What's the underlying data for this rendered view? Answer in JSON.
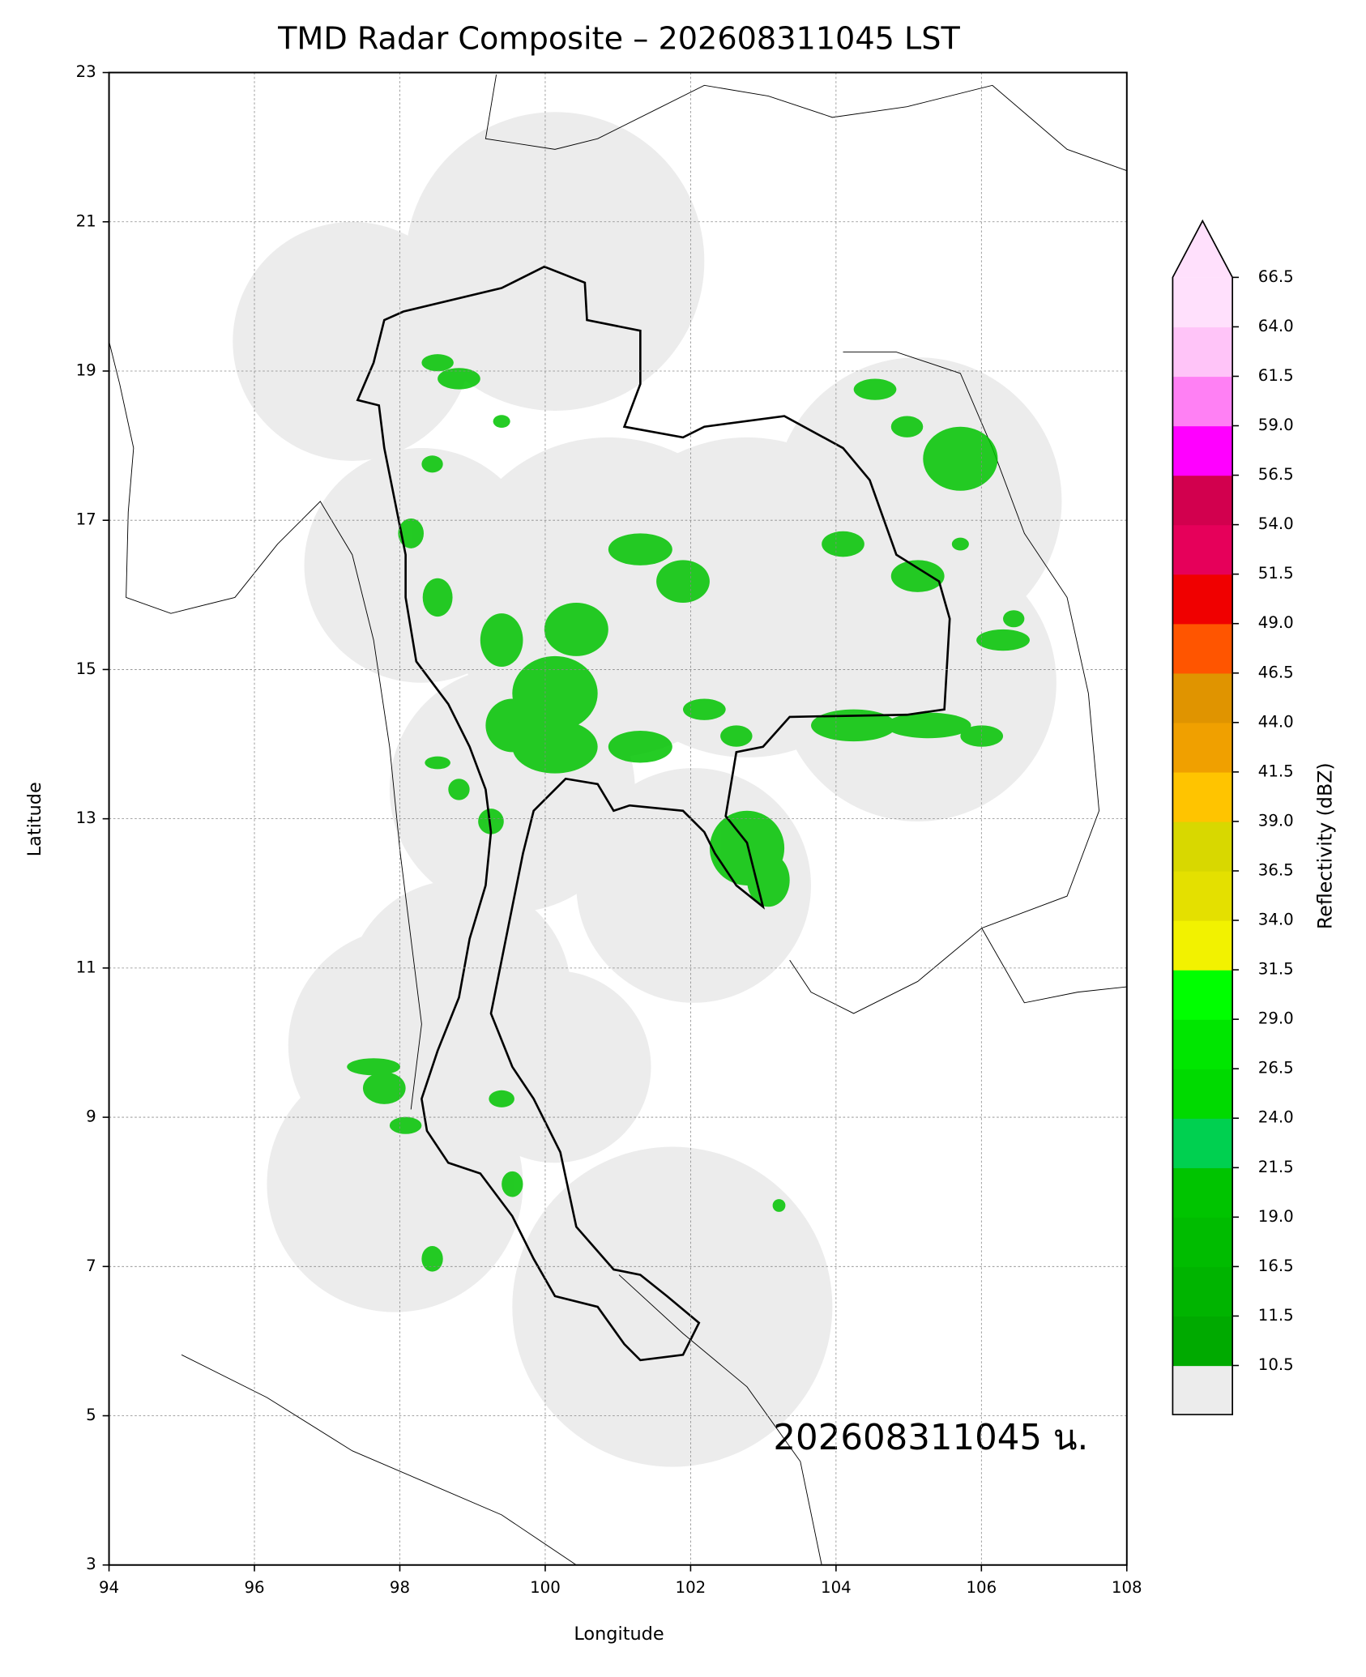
{
  "chart_data": {
    "type": "map",
    "title": "TMD Radar Composite – 202608311045 LST",
    "xlabel": "Longitude",
    "ylabel": "Latitude",
    "xlim": [
      94,
      108
    ],
    "ylim": [
      3,
      23
    ],
    "xticks": [
      94,
      96,
      98,
      100,
      102,
      104,
      106,
      108
    ],
    "yticks": [
      3,
      5,
      7,
      9,
      11,
      13,
      15,
      17,
      19,
      21,
      23
    ],
    "grid": true,
    "annotation": "202608311045 น.",
    "colorbar": {
      "label": "Reflectivity (dBZ)",
      "ticks": [
        10.5,
        11.5,
        16.5,
        {
          "value": 19,
          "label": "19.0"
        },
        21.5,
        {
          "value": 24,
          "label": "24.0"
        },
        26.5,
        {
          "value": 29,
          "label": "29.0"
        },
        31.5,
        {
          "value": 34,
          "label": "34.0"
        },
        36.5,
        {
          "value": 39,
          "label": "39.0"
        },
        41.5,
        {
          "value": 44,
          "label": "44.0"
        },
        46.5,
        {
          "value": 49,
          "label": "49.0"
        },
        51.5,
        {
          "value": 54,
          "label": "54.0"
        },
        56.5,
        {
          "value": 59,
          "label": "59.0"
        },
        61.5,
        {
          "value": 64,
          "label": "64.0"
        },
        66.5
      ],
      "colors": [
        "#00aa00",
        "#00b400",
        "#00bc00",
        "#00c400",
        "#00d050",
        "#00da00",
        "#00e600",
        "#00ff00",
        "#f2f200",
        "#e4e000",
        "#d8d800",
        "#ffc400",
        "#f0a000",
        "#e09400",
        "#ff5500",
        "#f00000",
        "#e6005a",
        "#d2004e",
        "#ff00ff",
        "#ff80f4",
        "#ffc4f8",
        "#ffe0fc"
      ],
      "extend_color": "#ffe0fc",
      "under_color": "#ececec"
    }
  }
}
